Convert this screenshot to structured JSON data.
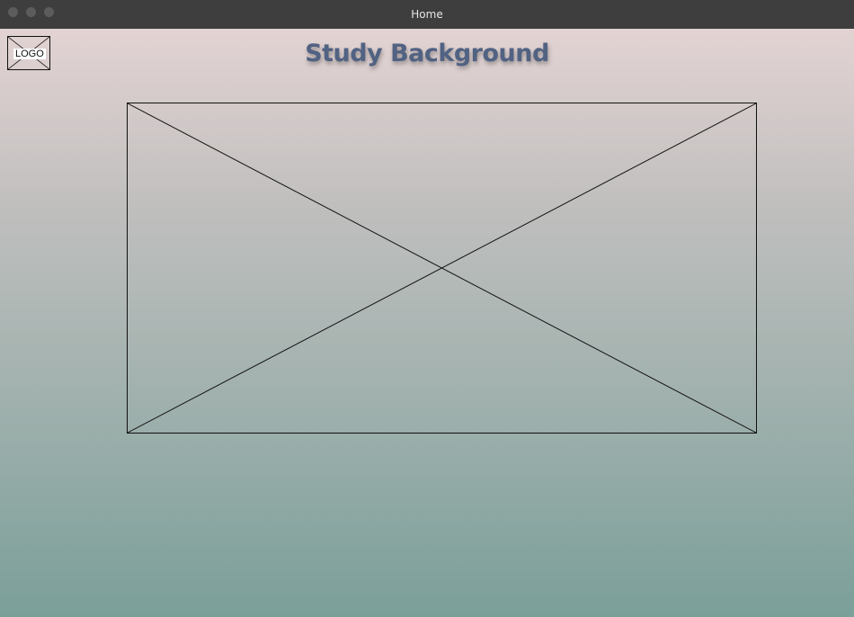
{
  "window": {
    "title": "Home"
  },
  "header": {
    "logo_label": "LOGO",
    "title": "Study Background"
  },
  "main": {
    "image_placeholder_icon": "image-placeholder-cross"
  },
  "colors": {
    "title_text": "#516282",
    "titlebar": "#3e3e3e",
    "gradient_top": "#e3d3d3",
    "gradient_bottom": "#7b9f99"
  }
}
